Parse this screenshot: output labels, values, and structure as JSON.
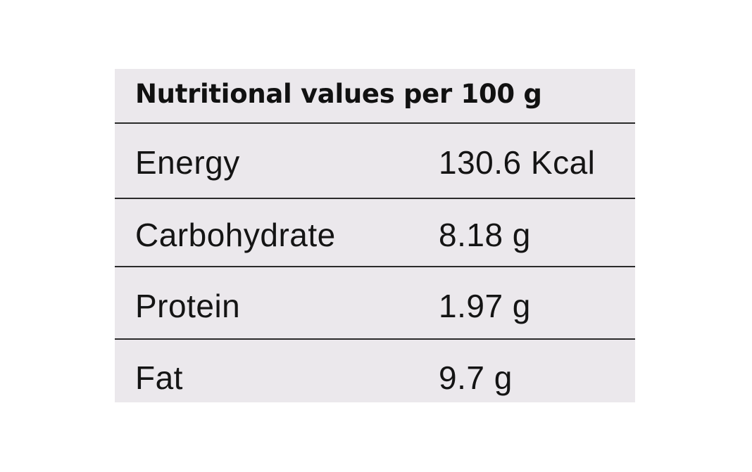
{
  "label": {
    "title": "Nutritional values per 100 g",
    "rows": [
      {
        "nutrient": "Energy",
        "amount": "130.6 Kcal"
      },
      {
        "nutrient": "Carbohydrate",
        "amount": "8.18 g"
      },
      {
        "nutrient": "Protein",
        "amount": "1.97 g"
      },
      {
        "nutrient": "Fat",
        "amount": "9.7 g"
      }
    ]
  },
  "colors": {
    "panel_background": "#ebe8ec",
    "text": "#141414",
    "rule": "#2a2a2a"
  }
}
